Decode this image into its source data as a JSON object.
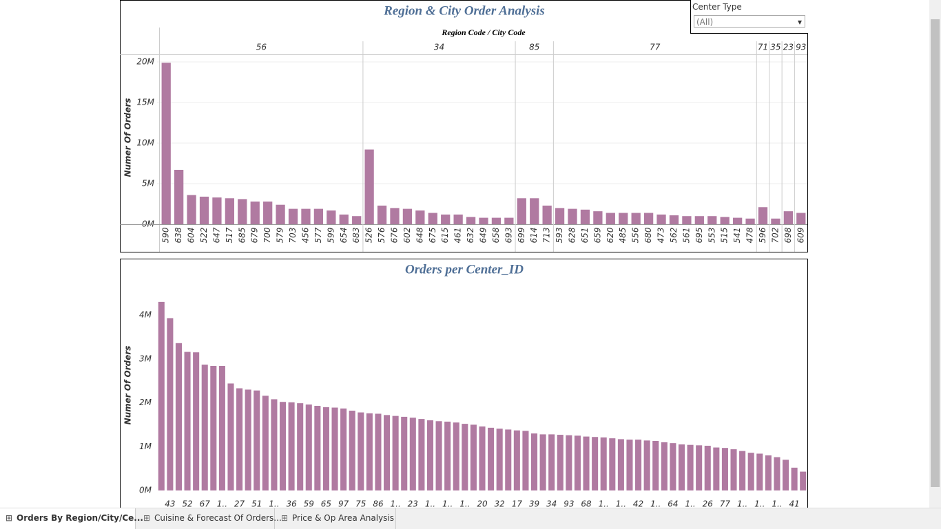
{
  "chart_data": [
    {
      "type": "bar",
      "title": "Region & City Order Analysis",
      "x_label": "Region Code  /  City Code",
      "y_label": "Numer Of Orders",
      "color": "#b07aa1",
      "grid": true,
      "groups": [
        {
          "name": "56",
          "categories": [
            "590",
            "638",
            "604",
            "522",
            "647",
            "517",
            "685",
            "679",
            "700",
            "579",
            "703",
            "456",
            "577",
            "599",
            "654",
            "683"
          ],
          "values": [
            19900000,
            6700000,
            3600000,
            3400000,
            3300000,
            3200000,
            3100000,
            2800000,
            2800000,
            2400000,
            1900000,
            1900000,
            1900000,
            1700000,
            1200000,
            1000000
          ]
        },
        {
          "name": "34",
          "categories": [
            "526",
            "576",
            "676",
            "602",
            "648",
            "675",
            "615",
            "461",
            "632",
            "649",
            "658",
            "693"
          ],
          "values": [
            9200000,
            2300000,
            2000000,
            1900000,
            1700000,
            1400000,
            1200000,
            1200000,
            900000,
            800000,
            800000,
            800000
          ]
        },
        {
          "name": "85",
          "categories": [
            "699",
            "614",
            "713"
          ],
          "values": [
            3200000,
            3200000,
            2300000
          ]
        },
        {
          "name": "77",
          "categories": [
            "593",
            "628",
            "651",
            "659",
            "620",
            "485",
            "556",
            "680",
            "473",
            "562",
            "561",
            "695",
            "553",
            "515",
            "541",
            "478"
          ],
          "values": [
            2000000,
            1900000,
            1800000,
            1600000,
            1400000,
            1400000,
            1400000,
            1400000,
            1200000,
            1100000,
            1000000,
            1000000,
            1000000,
            900000,
            800000,
            700000
          ]
        },
        {
          "name": "71",
          "categories": [
            "596"
          ],
          "values": [
            2100000
          ]
        },
        {
          "name": "35",
          "categories": [
            "702"
          ],
          "values": [
            700000
          ]
        },
        {
          "name": "23",
          "categories": [
            "698"
          ],
          "values": [
            1600000
          ]
        },
        {
          "name": "93",
          "categories": [
            "609"
          ],
          "values": [
            1400000
          ]
        }
      ],
      "ylim": [
        0,
        20000000
      ],
      "yticks": [
        {
          "value": 0,
          "label": "0M"
        },
        {
          "value": 5000000,
          "label": "5M"
        },
        {
          "value": 10000000,
          "label": "10M"
        },
        {
          "value": 15000000,
          "label": "15M"
        },
        {
          "value": 20000000,
          "label": "20M"
        }
      ]
    },
    {
      "type": "bar",
      "title": "Orders per Center_ID",
      "y_label": "Numer Of Orders",
      "color": "#b07aa1",
      "grid": false,
      "categories": [
        null,
        "43",
        null,
        "52",
        null,
        "67",
        null,
        "1..",
        null,
        "27",
        null,
        "51",
        null,
        "1..",
        null,
        "36",
        null,
        "59",
        null,
        "65",
        null,
        "97",
        null,
        "75",
        null,
        "86",
        null,
        "1..",
        null,
        "23",
        null,
        "1..",
        null,
        "1..",
        null,
        "1..",
        null,
        "20",
        null,
        "32",
        null,
        "17",
        null,
        "39",
        null,
        "34",
        null,
        "93",
        null,
        "68",
        null,
        "1..",
        null,
        "1..",
        null,
        "42",
        null,
        "1..",
        null,
        "64",
        null,
        "1..",
        null,
        "26",
        null,
        "77",
        null,
        "1..",
        null,
        "1..",
        null,
        "1..",
        null,
        "41",
        null
      ],
      "values": [
        4300000,
        3930000,
        3360000,
        3160000,
        3150000,
        2870000,
        2840000,
        2840000,
        2440000,
        2330000,
        2300000,
        2280000,
        2160000,
        2080000,
        2020000,
        2010000,
        1990000,
        1960000,
        1930000,
        1900000,
        1890000,
        1870000,
        1820000,
        1780000,
        1760000,
        1750000,
        1720000,
        1700000,
        1680000,
        1660000,
        1630000,
        1600000,
        1580000,
        1570000,
        1550000,
        1520000,
        1500000,
        1460000,
        1430000,
        1410000,
        1390000,
        1370000,
        1360000,
        1300000,
        1280000,
        1280000,
        1270000,
        1260000,
        1250000,
        1230000,
        1220000,
        1210000,
        1190000,
        1170000,
        1160000,
        1160000,
        1140000,
        1130000,
        1100000,
        1080000,
        1050000,
        1040000,
        1030000,
        1020000,
        980000,
        970000,
        940000,
        900000,
        860000,
        840000,
        800000,
        760000,
        700000,
        520000,
        430000
      ],
      "ylim": [
        0,
        4000000
      ],
      "yticks": [
        {
          "value": 0,
          "label": "0M"
        },
        {
          "value": 1000000,
          "label": "1M"
        },
        {
          "value": 2000000,
          "label": "2M"
        },
        {
          "value": 3000000,
          "label": "3M"
        },
        {
          "value": 4000000,
          "label": "4M"
        }
      ]
    }
  ],
  "filter": {
    "label": "Center Type",
    "value": "(All)"
  },
  "tabs": [
    "Orders By Region/City/Ce...",
    "Cuisine & Forecast Of Orders...",
    "Price & Op Area Analysis"
  ]
}
